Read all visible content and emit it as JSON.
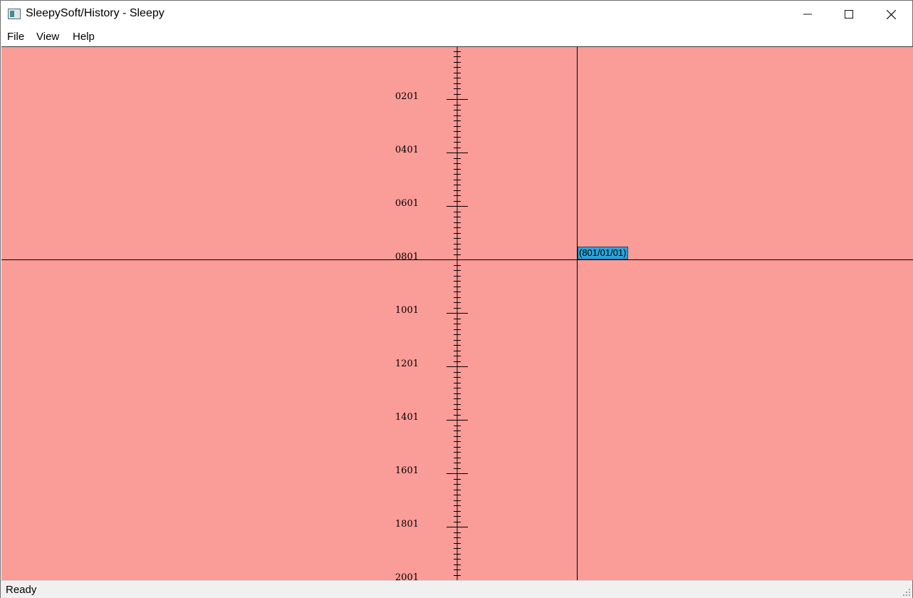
{
  "window": {
    "title": "SleepySoft/History - Sleepy"
  },
  "menu": {
    "items": [
      "File",
      "View",
      "Help"
    ]
  },
  "timeline": {
    "axis_labels": [
      "0201",
      "0401",
      "0601",
      "0801",
      "1001",
      "1201",
      "1401",
      "1601",
      "1801",
      "2001"
    ],
    "cursor_label": "(801/01/01)",
    "background_color": "#fa9c98",
    "cursor_label_color": "#2aa4dc"
  },
  "status": {
    "text": "Ready"
  },
  "icons": {
    "app": "app-window-icon",
    "minimize": "minimize-icon",
    "maximize": "maximize-icon",
    "close": "close-icon",
    "grip": "resize-grip-icon"
  }
}
